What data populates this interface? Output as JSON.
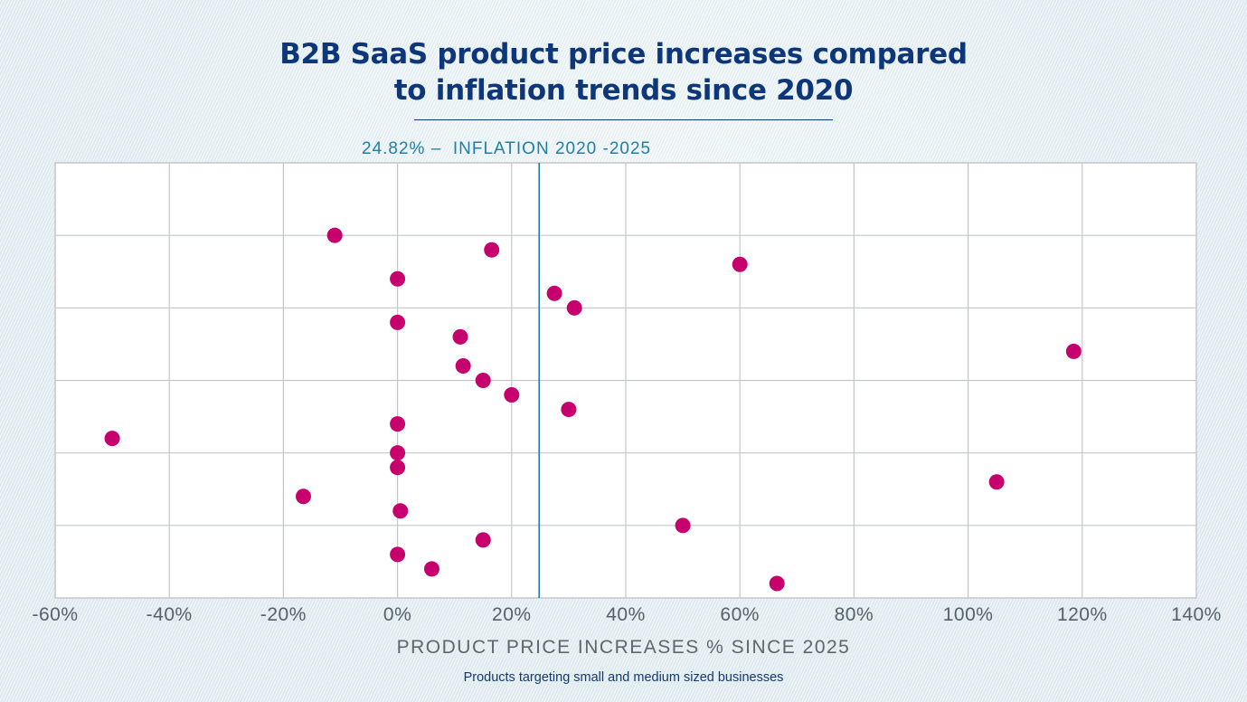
{
  "title_line1": "B2B SaaS product price increases compared",
  "title_line2": "to inflation trends since 2020",
  "inflation_label": "24.82% –  INFLATION 2020 -2025",
  "footnote": "Products targeting small and medium sized businesses",
  "colors": {
    "title": "#0d3779",
    "reference_line": "#1d7fa5",
    "points": "#c6006d",
    "grid": "#c4c7ca",
    "axis_text": "#55616a"
  },
  "chart_data": {
    "type": "scatter",
    "title": "B2B SaaS product price increases compared to inflation trends since 2020",
    "xlabel": "PRODUCT PRICE INCREASES % SINCE 2025",
    "ylabel": "",
    "xlim": [
      -60,
      140
    ],
    "ylim": [
      0,
      30
    ],
    "x_ticks": [
      -60,
      -40,
      -20,
      0,
      20,
      40,
      60,
      80,
      100,
      120,
      140
    ],
    "x_tick_labels": [
      "-60%",
      "-40%",
      "-20%",
      "0%",
      "20%",
      "40%",
      "60%",
      "80%",
      "100%",
      "120%",
      "140%"
    ],
    "y_gridlines": [
      5,
      10,
      15,
      20,
      25
    ],
    "y_tick_labels_shown": false,
    "grid": true,
    "reference_line": {
      "axis": "x",
      "value": 24.82,
      "label": "24.82% –  INFLATION 2020 -2025"
    },
    "series": [
      {
        "name": "Products targeting small and medium sized businesses",
        "points": [
          {
            "x": -11,
            "y": 25
          },
          {
            "x": 16.5,
            "y": 24
          },
          {
            "x": 60,
            "y": 23
          },
          {
            "x": 0,
            "y": 22
          },
          {
            "x": 27.5,
            "y": 21
          },
          {
            "x": 31,
            "y": 20
          },
          {
            "x": 0,
            "y": 19
          },
          {
            "x": 11,
            "y": 18
          },
          {
            "x": 118.5,
            "y": 17
          },
          {
            "x": 11.5,
            "y": 16
          },
          {
            "x": 15,
            "y": 15
          },
          {
            "x": 20,
            "y": 14
          },
          {
            "x": 30,
            "y": 13
          },
          {
            "x": 0,
            "y": 12
          },
          {
            "x": -50,
            "y": 11
          },
          {
            "x": 0,
            "y": 10
          },
          {
            "x": 0,
            "y": 9
          },
          {
            "x": 105,
            "y": 8
          },
          {
            "x": -16.5,
            "y": 7
          },
          {
            "x": 0.5,
            "y": 6
          },
          {
            "x": 50,
            "y": 5
          },
          {
            "x": 15,
            "y": 4
          },
          {
            "x": 0,
            "y": 3
          },
          {
            "x": 6,
            "y": 2
          },
          {
            "x": 66.5,
            "y": 1
          }
        ]
      }
    ]
  }
}
